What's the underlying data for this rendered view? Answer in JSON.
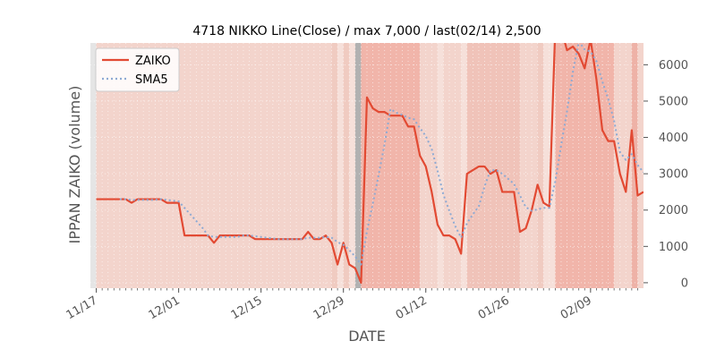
{
  "chart_data": {
    "type": "line",
    "title": "4718 NIKKO Line(Close) / max 7,000 / last(02/14) 2,500",
    "xlabel": "DATE",
    "ylabel": "IPPAN ZAIKO (volume)",
    "x_ticks": [
      "11/17",
      "12/01",
      "12/15",
      "12/29",
      "01/12",
      "01/26",
      "02/09"
    ],
    "y_ticks": [
      "0",
      "1000",
      "2000",
      "3000",
      "4000",
      "5000",
      "6000"
    ],
    "ylim": [
      -150,
      6600
    ],
    "xlim": [
      -1,
      93
    ],
    "legend_position": "top-left",
    "grid": true,
    "tick_positions": [
      0,
      14,
      28,
      42,
      56,
      70,
      84
    ],
    "series": [
      {
        "name": "ZAIKO",
        "color": "#e24a33",
        "style": "solid",
        "values": [
          2300,
          2300,
          2300,
          2300,
          2300,
          2300,
          2200,
          2300,
          2300,
          2300,
          2300,
          2300,
          2200,
          2200,
          2200,
          1300,
          1300,
          1300,
          1300,
          1300,
          1100,
          1300,
          1300,
          1300,
          1300,
          1300,
          1300,
          1200,
          1200,
          1200,
          1200,
          1200,
          1200,
          1200,
          1200,
          1200,
          1400,
          1200,
          1200,
          1300,
          1100,
          500,
          1100,
          500,
          400,
          0,
          5100,
          4800,
          4700,
          4700,
          4600,
          4600,
          4600,
          4300,
          4300,
          3500,
          3200,
          2500,
          1600,
          1300,
          1300,
          1200,
          800,
          3000,
          3100,
          3200,
          3200,
          3000,
          3100,
          2500,
          2500,
          2500,
          1400,
          1500,
          2000,
          2700,
          2200,
          2100,
          7000,
          7000,
          6400,
          6500,
          6300,
          5900,
          6700,
          5600,
          4200,
          3900,
          3900,
          3000,
          2500,
          4200,
          2400,
          2500
        ]
      },
      {
        "name": "SMA5",
        "color": "#8eaad3",
        "style": "dotted",
        "values": [
          null,
          null,
          null,
          null,
          2300,
          2300,
          2280,
          2280,
          2280,
          2280,
          2280,
          2300,
          2280,
          2260,
          2240,
          2060,
          1880,
          1700,
          1520,
          1300,
          1260,
          1260,
          1260,
          1260,
          1260,
          1300,
          1300,
          1280,
          1260,
          1240,
          1220,
          1200,
          1200,
          1200,
          1200,
          1200,
          1240,
          1240,
          1240,
          1260,
          1240,
          1120,
          1040,
          900,
          720,
          500,
          1420,
          2180,
          2980,
          3820,
          4780,
          4680,
          4620,
          4540,
          4500,
          4260,
          4040,
          3680,
          3080,
          2420,
          1980,
          1560,
          1240,
          1640,
          1880,
          2100,
          2660,
          3100,
          3100,
          3000,
          2860,
          2720,
          2400,
          2080,
          1980,
          2020,
          2060,
          2060,
          2780,
          3780,
          4720,
          5800,
          6640,
          6420,
          6360,
          6100,
          5540,
          5060,
          4460,
          3600,
          3380,
          3540,
          3240,
          3040
        ]
      }
    ],
    "bands": [
      {
        "from": -1,
        "to": 0,
        "color": "#e5e5e5"
      },
      {
        "from": 0,
        "to": 40,
        "color": "#f3d4cc"
      },
      {
        "from": 40,
        "to": 41,
        "color": "#f0cbc1"
      },
      {
        "from": 41,
        "to": 42,
        "color": "#f6e0da"
      },
      {
        "from": 42,
        "to": 43,
        "color": "#f0cbc1"
      },
      {
        "from": 43,
        "to": 44,
        "color": "#f6e0da"
      },
      {
        "from": 44,
        "to": 45,
        "color": "#b1b1b1"
      },
      {
        "from": 45,
        "to": 55,
        "color": "#f1b5aa"
      },
      {
        "from": 55,
        "to": 58,
        "color": "#f3d4cc"
      },
      {
        "from": 58,
        "to": 59,
        "color": "#f6e0da"
      },
      {
        "from": 59,
        "to": 62,
        "color": "#f3d4cc"
      },
      {
        "from": 62,
        "to": 63,
        "color": "#f6e0da"
      },
      {
        "from": 63,
        "to": 72,
        "color": "#f0c3b9"
      },
      {
        "from": 72,
        "to": 75,
        "color": "#f3d4cc"
      },
      {
        "from": 75,
        "to": 76,
        "color": "#f0cbc1"
      },
      {
        "from": 76,
        "to": 78,
        "color": "#f6e0da"
      },
      {
        "from": 78,
        "to": 88,
        "color": "#f1b5aa"
      },
      {
        "from": 88,
        "to": 91,
        "color": "#f3d4cc"
      },
      {
        "from": 91,
        "to": 92,
        "color": "#eeb2a7"
      },
      {
        "from": 92,
        "to": 93,
        "color": "#f3d4cc"
      }
    ]
  }
}
